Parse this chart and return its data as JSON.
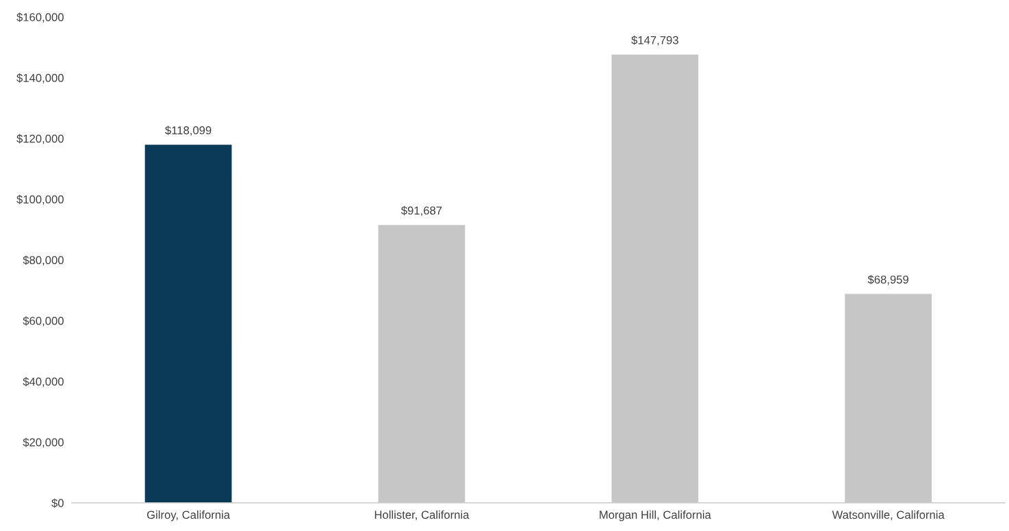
{
  "chart_data": {
    "type": "bar",
    "categories": [
      "Gilroy, California",
      "Hollister, California",
      "Morgan Hill, California",
      "Watsonville, California"
    ],
    "values": [
      118099,
      91687,
      147793,
      68959
    ],
    "colors": [
      "#0b3a58",
      "#c6c6c6",
      "#c6c6c6",
      "#c6c6c6"
    ],
    "value_labels": [
      "$118,099",
      "$91,687",
      "$147,793",
      "$68,959"
    ],
    "ylim": [
      0,
      160000
    ],
    "yticks": [
      {
        "value": 0,
        "label": "$0"
      },
      {
        "value": 20000,
        "label": "$20,000"
      },
      {
        "value": 40000,
        "label": "$40,000"
      },
      {
        "value": 60000,
        "label": "$60,000"
      },
      {
        "value": 80000,
        "label": "$80,000"
      },
      {
        "value": 100000,
        "label": "$100,000"
      },
      {
        "value": 120000,
        "label": "$120,000"
      },
      {
        "value": 140000,
        "label": "$140,000"
      },
      {
        "value": 160000,
        "label": "$160,000"
      }
    ],
    "grid": false,
    "legend": false
  }
}
